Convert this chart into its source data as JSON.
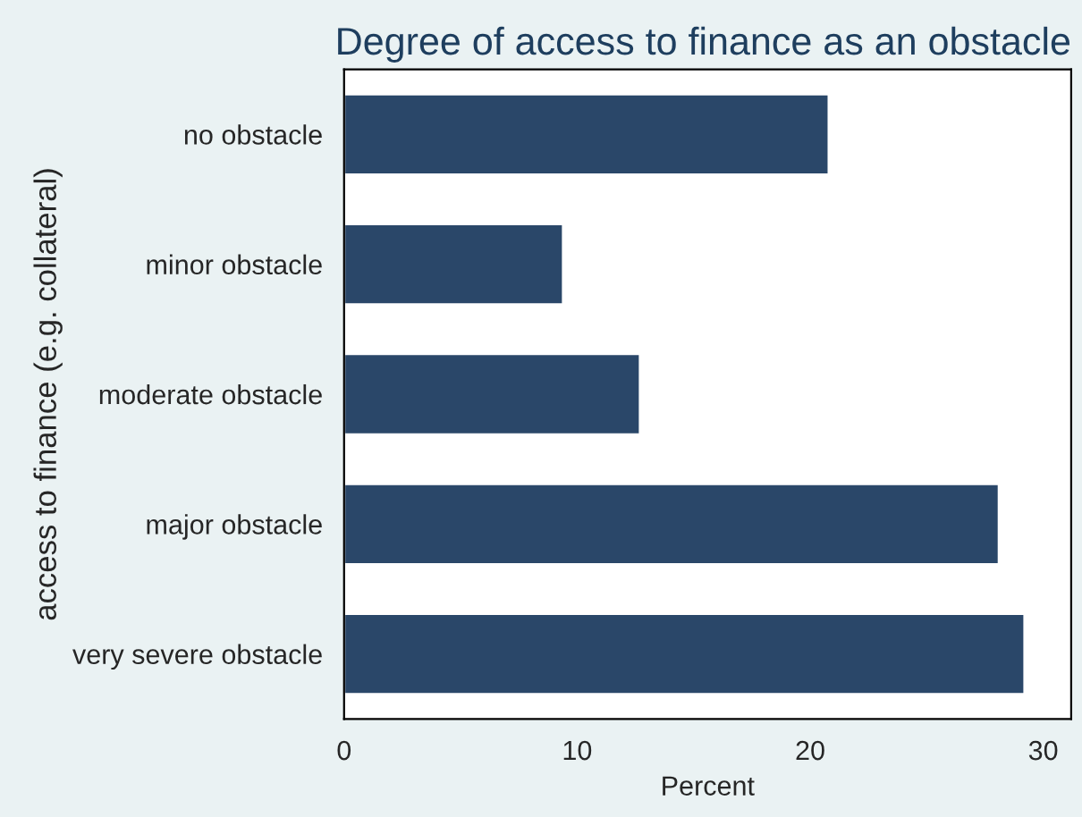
{
  "chart_data": {
    "type": "bar",
    "orientation": "horizontal",
    "title": "Degree of access to finance as an obstacle",
    "xlabel": "Percent",
    "ylabel": "access to finance (e.g. collateral)",
    "categories": [
      "no obstacle",
      "minor obstacle",
      "moderate obstacle",
      "major obstacle",
      "very severe obstacle"
    ],
    "values": [
      20.8,
      9.4,
      12.7,
      28.1,
      29.2
    ],
    "color": "#2a4769",
    "xlim": [
      0,
      31.2
    ],
    "xticks": [
      0,
      10,
      20,
      30
    ],
    "grid": false,
    "legend": false
  }
}
